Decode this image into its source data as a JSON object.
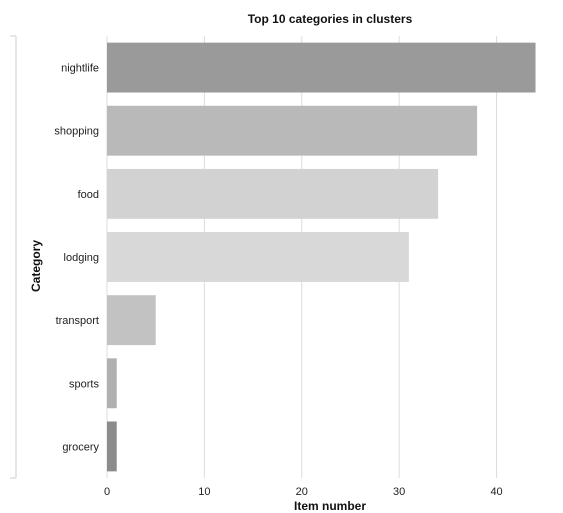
{
  "chart_data": {
    "type": "bar",
    "orientation": "horizontal",
    "title": "Top 10 categories in clusters",
    "xlabel": "Item number",
    "ylabel": "Category",
    "categories": [
      "nightlife",
      "shopping",
      "food",
      "lodging",
      "transport",
      "sports",
      "grocery"
    ],
    "values": [
      44,
      38,
      34,
      31,
      5,
      1,
      1
    ],
    "colors": [
      "#9a9a9a",
      "#b9b9b9",
      "#d2d2d2",
      "#d8d8d8",
      "#c2c2c2",
      "#b0b0b0",
      "#8c8c8c"
    ],
    "xlim": [
      0,
      46
    ],
    "xticks": [
      0,
      10,
      20,
      30,
      40
    ],
    "grid": true
  }
}
